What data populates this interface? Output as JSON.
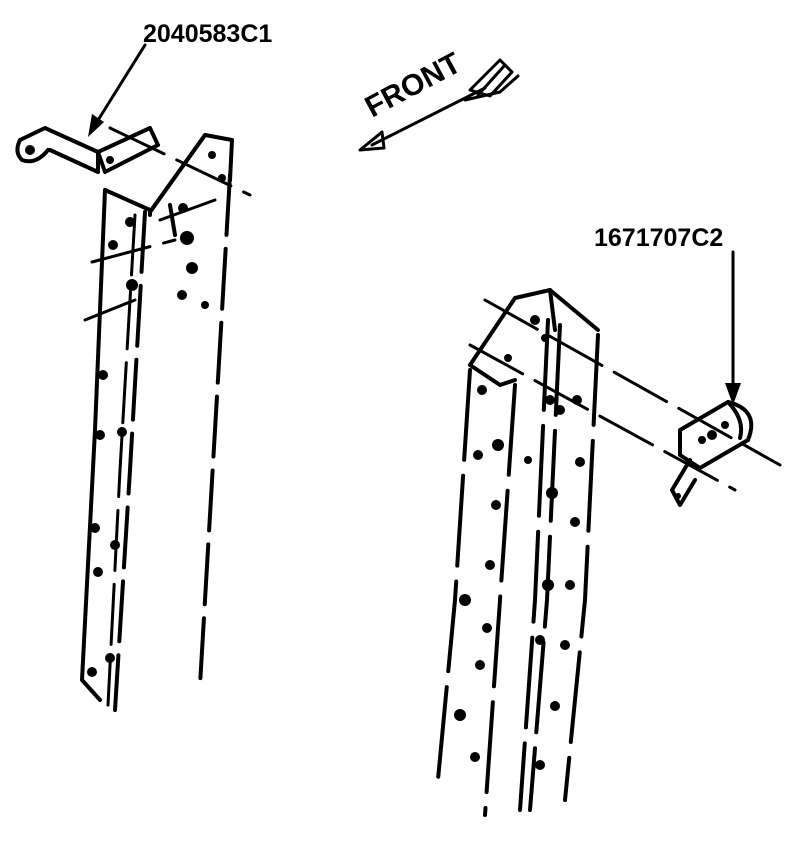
{
  "labels": {
    "part_left": "2040583C1",
    "part_right": "1671707C2",
    "direction": "FRONT"
  }
}
